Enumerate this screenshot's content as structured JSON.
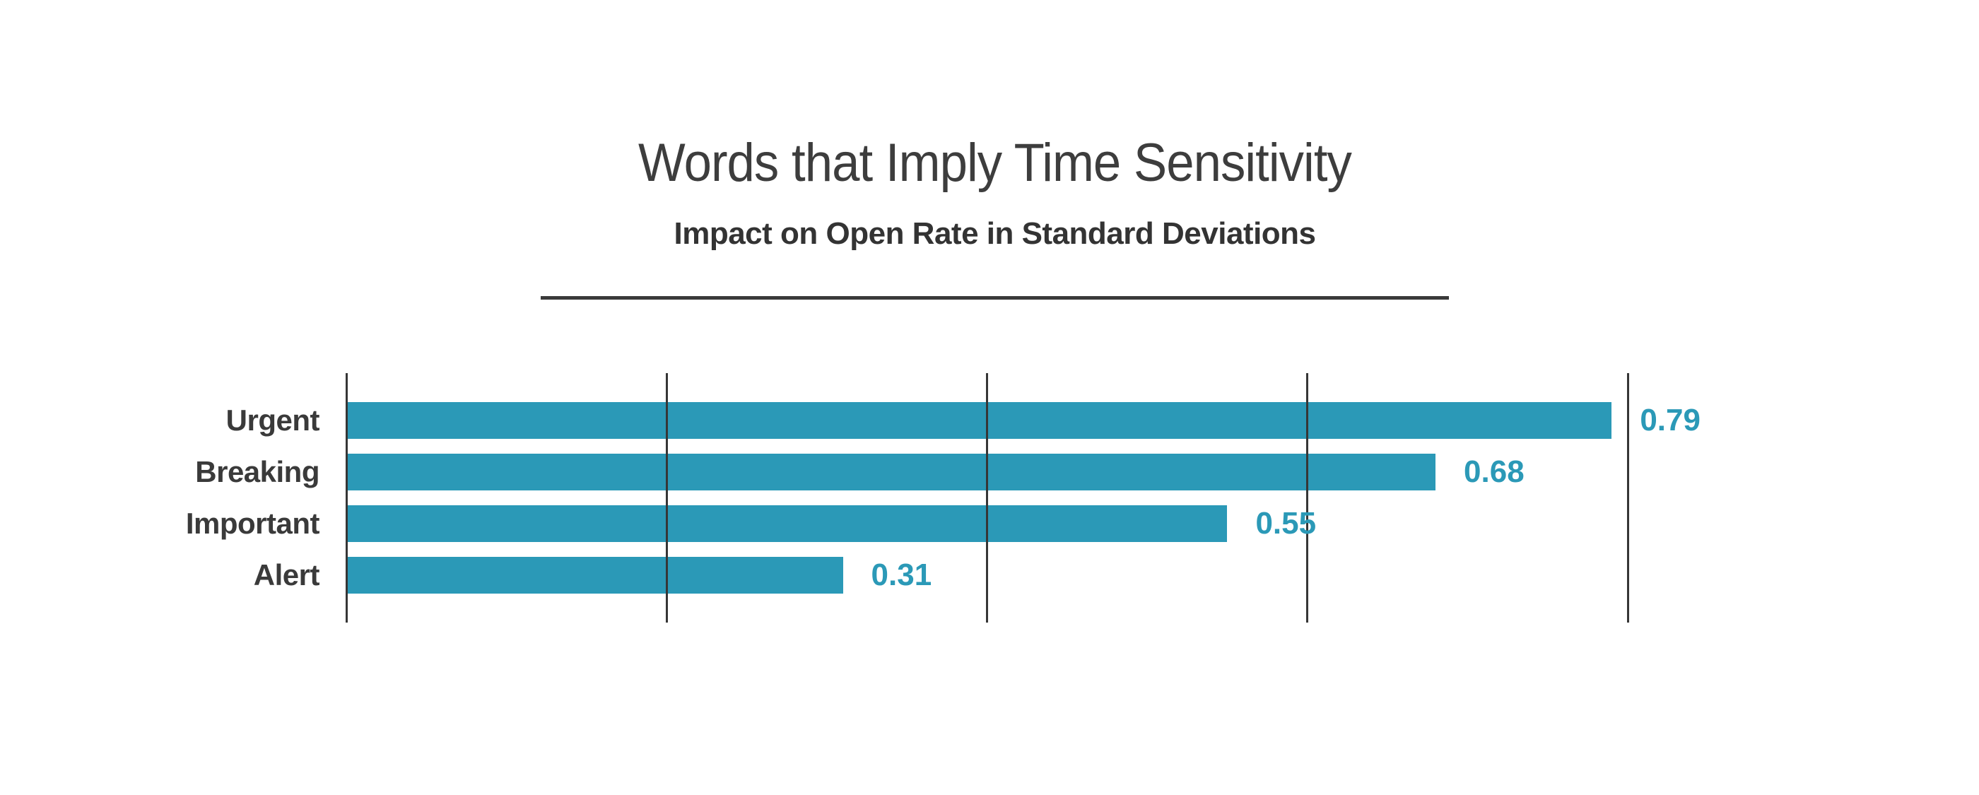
{
  "header": {
    "title": "Words that Imply Time Sensitivity",
    "subtitle": "Impact on Open Rate in Standard Deviations"
  },
  "chart_data": {
    "type": "bar",
    "orientation": "horizontal",
    "title": "Words that Imply Time Sensitivity",
    "subtitle": "Impact on Open Rate in Standard Deviations",
    "categories": [
      "Urgent",
      "Breaking",
      "Important",
      "Alert"
    ],
    "values": [
      0.79,
      0.68,
      0.55,
      0.31
    ],
    "value_labels": [
      "0.79",
      "0.68",
      "0.55",
      "0.31"
    ],
    "xlabel": "",
    "ylabel": "",
    "xlim": [
      0,
      0.8
    ],
    "gridline_values": [
      0,
      0.2,
      0.4,
      0.6,
      0.8
    ],
    "grid": true,
    "legend": false,
    "bar_color": "#2B99B7",
    "value_label_color": "#2B99B7",
    "category_label_color": "#3A3A3A",
    "gridline_color": "#363636",
    "divider_color": "#3A3A3A",
    "title_color": "#3D3D3D",
    "subtitle_color": "#333333",
    "background_color": "#FFFFFF"
  }
}
